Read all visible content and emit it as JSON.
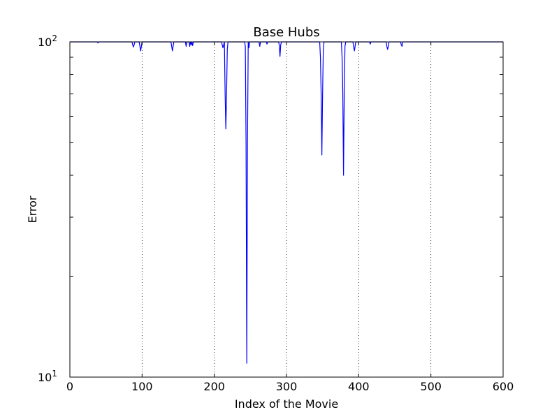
{
  "chart_data": {
    "type": "line",
    "title": "Base Hubs",
    "xlabel": "Index of the Movie",
    "ylabel": "Error",
    "xlim": [
      0,
      600
    ],
    "ylim": [
      10,
      100
    ],
    "yscale": "log",
    "grid": {
      "x": true,
      "y": false,
      "style": "dotted"
    },
    "x_ticks": [
      "0",
      "100",
      "200",
      "300",
      "400",
      "500",
      "600"
    ],
    "y_ticks": [
      {
        "base": "10",
        "exp": "1"
      },
      {
        "base": "10",
        "exp": "2"
      }
    ],
    "color": "#0000ff",
    "series": [
      {
        "x": [
          0,
          38,
          39,
          40,
          86,
          87,
          88,
          89,
          90,
          96,
          97,
          98,
          99,
          100,
          140,
          141,
          142,
          143,
          144,
          160,
          161,
          162,
          165,
          166,
          167,
          168,
          169,
          170,
          171,
          172,
          173,
          210,
          211,
          212,
          213,
          214,
          215,
          216,
          217,
          218,
          219,
          242,
          243,
          244,
          245,
          246,
          247,
          248,
          249,
          250,
          262,
          263,
          264,
          272,
          273,
          274,
          289,
          290,
          291,
          292,
          293,
          294,
          346,
          347,
          348,
          349,
          350,
          351,
          352,
          376,
          377,
          378,
          379,
          380,
          381,
          382,
          392,
          393,
          394,
          395,
          396,
          397,
          415,
          416,
          417,
          438,
          439,
          440,
          441,
          442,
          458,
          459,
          460,
          461,
          600
        ],
        "y": [
          100,
          100,
          99.3,
          100,
          100,
          98,
          96.5,
          98,
          100,
          100,
          97,
          94,
          97,
          100,
          100,
          97,
          94,
          97,
          100,
          100,
          97,
          100,
          100,
          97,
          100,
          98,
          100,
          97.5,
          100,
          100,
          100,
          100,
          98,
          96,
          98,
          100,
          70,
          55,
          70,
          95,
          100,
          100,
          97,
          50,
          11,
          50,
          100,
          96,
          100,
          100,
          100,
          97,
          100,
          100,
          98.5,
          100,
          100,
          98,
          90.5,
          98,
          100,
          100,
          100,
          90,
          70,
          46,
          70,
          95,
          100,
          100,
          90,
          70,
          40,
          70,
          97,
          100,
          100,
          97,
          94,
          97,
          100,
          100,
          100,
          98.5,
          100,
          100,
          97,
          95,
          97,
          100,
          100,
          98,
          97,
          100,
          100
        ]
      }
    ]
  }
}
